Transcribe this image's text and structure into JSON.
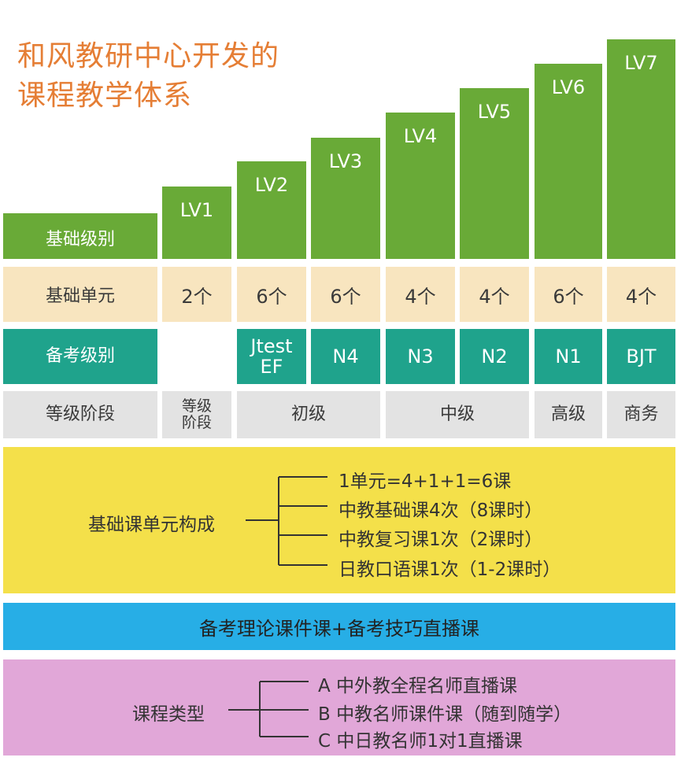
{
  "title": {
    "line1": "和风教研中心开发的",
    "line2": "课程教学体系"
  },
  "levels_header": "基础级别",
  "levels": [
    "LV1",
    "LV2",
    "LV3",
    "LV4",
    "LV5",
    "LV6",
    "LV7"
  ],
  "units": {
    "label": "基础单元",
    "values": [
      "2个",
      "6个",
      "6个",
      "4个",
      "4个",
      "6个",
      "4个"
    ]
  },
  "exam": {
    "label": "备考级别",
    "values": [
      "",
      "Jtest EF",
      "N4",
      "N3",
      "N2",
      "N1",
      "BJT"
    ]
  },
  "stage": {
    "label": "等级阶段",
    "lv1": "等级 阶段",
    "beginner": "初级",
    "intermediate": "中级",
    "advanced": "高级",
    "business": "商务"
  },
  "unit_composition": {
    "label": "基础课单元构成",
    "items": [
      "1单元=4+1+1=6课",
      "中教基础课4次（8课时）",
      "中教复习课1次（2课时）",
      "日教口语课1次（1-2课时）"
    ]
  },
  "exam_prep": "备考理论课件课+备考技巧直播课",
  "course_types": {
    "label": "课程类型",
    "items": [
      "A 中外教全程名师直播课",
      "B 中教名师课件课（随到随学）",
      "C 中日教名师1对1直播课"
    ]
  },
  "colors": {
    "title": "#e57e35",
    "green": "#69aa37",
    "beige": "#f8e5bf",
    "teal": "#1fa38c",
    "gray": "#e3e3e3",
    "yellow": "#f4e04a",
    "blue": "#27aee6",
    "pink": "#e1a7d8"
  }
}
